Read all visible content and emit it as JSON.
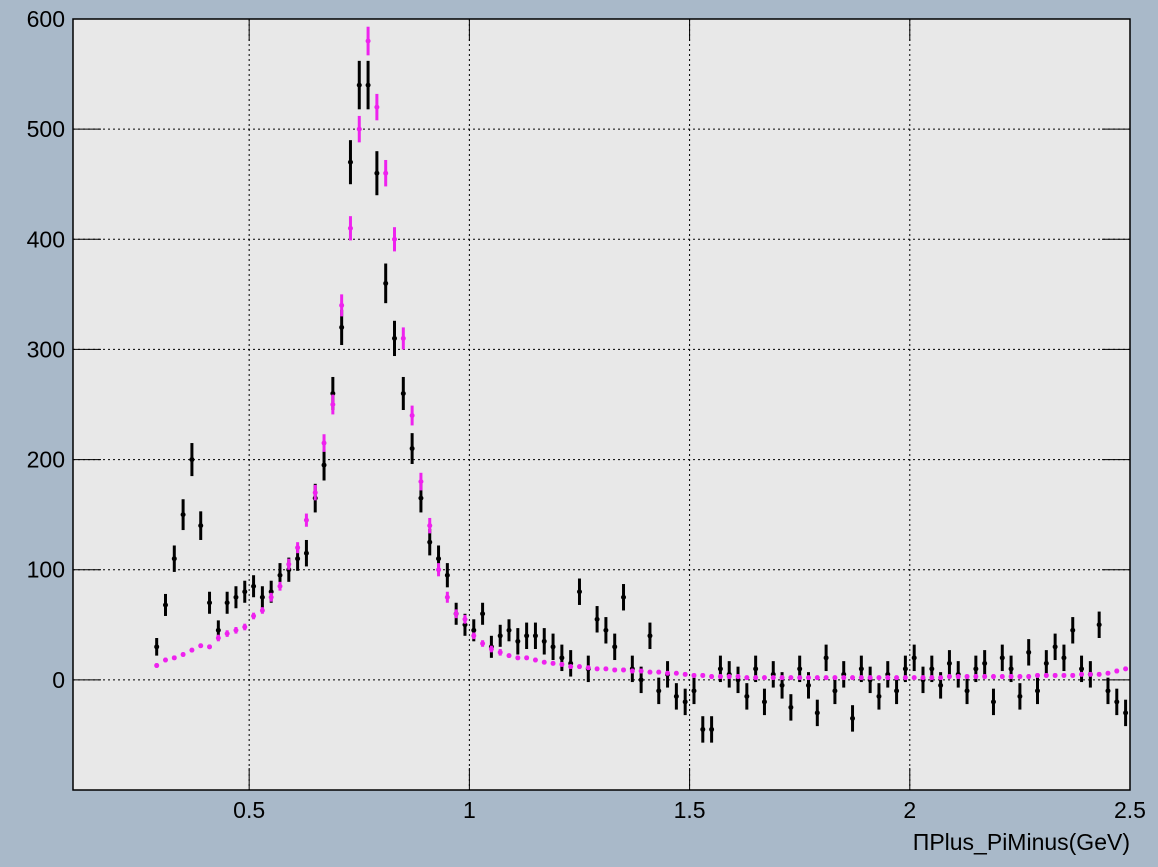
{
  "chart_data": {
    "type": "scatter",
    "x_label": "ΠPlus_PiMinus(GeV)",
    "xlim": [
      0.1,
      2.5
    ],
    "xticks": [
      0.5,
      1,
      1.5,
      2,
      2.5
    ],
    "ylim": [
      -100,
      600
    ],
    "yticks": [
      0,
      100,
      200,
      300,
      400,
      500,
      600
    ],
    "grid": true,
    "x": [
      0.29,
      0.31,
      0.33,
      0.35,
      0.37,
      0.39,
      0.41,
      0.43,
      0.45,
      0.47,
      0.49,
      0.51,
      0.53,
      0.55,
      0.57,
      0.59,
      0.61,
      0.63,
      0.65,
      0.67,
      0.69,
      0.71,
      0.73,
      0.75,
      0.77,
      0.79,
      0.81,
      0.83,
      0.85,
      0.87,
      0.89,
      0.91,
      0.93,
      0.95,
      0.97,
      0.99,
      1.01,
      1.03,
      1.05,
      1.07,
      1.09,
      1.11,
      1.13,
      1.15,
      1.17,
      1.19,
      1.21,
      1.23,
      1.25,
      1.27,
      1.29,
      1.31,
      1.33,
      1.35,
      1.37,
      1.39,
      1.41,
      1.43,
      1.45,
      1.47,
      1.49,
      1.51,
      1.53,
      1.55,
      1.57,
      1.59,
      1.61,
      1.63,
      1.65,
      1.67,
      1.69,
      1.71,
      1.73,
      1.75,
      1.77,
      1.79,
      1.81,
      1.83,
      1.85,
      1.87,
      1.89,
      1.91,
      1.93,
      1.95,
      1.97,
      1.99,
      2.01,
      2.03,
      2.05,
      2.07,
      2.09,
      2.11,
      2.13,
      2.15,
      2.17,
      2.19,
      2.21,
      2.23,
      2.25,
      2.27,
      2.29,
      2.31,
      2.33,
      2.35,
      2.37,
      2.39,
      2.41,
      2.43,
      2.45,
      2.47,
      2.49
    ],
    "series": [
      {
        "color": "#000000",
        "values": [
          30,
          68,
          110,
          150,
          200,
          140,
          70,
          45,
          70,
          75,
          80,
          85,
          75,
          80,
          95,
          100,
          110,
          115,
          165,
          195,
          260,
          320,
          470,
          540,
          540,
          460,
          360,
          310,
          260,
          210,
          165,
          125,
          110,
          95,
          60,
          50,
          45,
          60,
          30,
          40,
          45,
          35,
          40,
          40,
          35,
          30,
          20,
          15,
          80,
          10,
          55,
          45,
          30,
          75,
          10,
          0,
          40,
          -10,
          5,
          -15,
          -20,
          -10,
          -45,
          -45,
          10,
          5,
          0,
          -15,
          10,
          -20,
          5,
          -5,
          -25,
          10,
          -5,
          -30,
          20,
          -10,
          5,
          -35,
          10,
          0,
          -15,
          5,
          -10,
          10,
          20,
          0,
          10,
          -5,
          15,
          5,
          -10,
          10,
          15,
          -20,
          20,
          10,
          -15,
          25,
          -10,
          15,
          30,
          20,
          45,
          10,
          5,
          50,
          -10,
          -20,
          -30
        ],
        "errors": [
          8,
          10,
          12,
          14,
          15,
          13,
          10,
          9,
          10,
          10,
          10,
          10,
          10,
          10,
          11,
          11,
          11,
          12,
          13,
          14,
          15,
          16,
          20,
          22,
          22,
          20,
          18,
          16,
          15,
          14,
          13,
          12,
          12,
          11,
          10,
          10,
          10,
          10,
          10,
          10,
          10,
          12,
          12,
          12,
          12,
          12,
          12,
          12,
          12,
          12,
          12,
          12,
          12,
          12,
          12,
          12,
          12,
          12,
          12,
          12,
          12,
          12,
          12,
          12,
          12,
          12,
          12,
          12,
          12,
          12,
          12,
          12,
          12,
          12,
          12,
          12,
          12,
          12,
          12,
          12,
          12,
          12,
          12,
          12,
          12,
          12,
          12,
          12,
          12,
          12,
          12,
          12,
          12,
          12,
          12,
          12,
          12,
          12,
          12,
          12,
          12,
          12,
          12,
          12,
          12,
          12,
          12,
          12,
          12,
          12,
          12
        ]
      },
      {
        "color": "#ee22ee",
        "values": [
          13,
          18,
          20,
          23,
          27,
          31,
          30,
          38,
          42,
          45,
          48,
          58,
          63,
          75,
          85,
          105,
          120,
          145,
          170,
          215,
          250,
          340,
          410,
          500,
          580,
          520,
          460,
          400,
          310,
          240,
          180,
          140,
          100,
          75,
          60,
          55,
          40,
          33,
          28,
          25,
          22,
          20,
          20,
          18,
          16,
          15,
          14,
          12,
          12,
          11,
          10,
          10,
          9,
          9,
          8,
          8,
          7,
          7,
          6,
          6,
          5,
          4,
          4,
          3,
          3,
          3,
          3,
          2,
          2,
          2,
          2,
          2,
          2,
          2,
          2,
          2,
          2,
          2,
          2,
          2,
          2,
          2,
          2,
          2,
          2,
          2,
          2,
          2,
          2,
          2,
          3,
          3,
          3,
          3,
          3,
          3,
          3,
          3,
          3,
          3,
          4,
          4,
          4,
          4,
          4,
          5,
          5,
          5,
          6,
          8,
          10
        ],
        "errors": [
          2,
          2,
          2,
          2,
          2,
          2,
          2,
          3,
          3,
          3,
          3,
          3,
          3,
          4,
          4,
          5,
          5,
          6,
          7,
          8,
          9,
          10,
          11,
          12,
          13,
          12,
          12,
          11,
          10,
          9,
          8,
          7,
          6,
          5,
          4,
          4,
          3,
          3,
          3,
          3,
          2,
          2,
          2,
          2,
          2,
          2,
          2,
          2,
          2,
          2,
          2,
          2,
          2,
          2,
          2,
          2,
          2,
          2,
          2,
          2,
          2,
          2,
          2,
          2,
          2,
          2,
          2,
          2,
          2,
          2,
          2,
          2,
          2,
          2,
          2,
          2,
          2,
          2,
          2,
          2,
          2,
          2,
          2,
          2,
          2,
          2,
          2,
          2,
          2,
          2,
          2,
          2,
          2,
          2,
          2,
          2,
          2,
          2,
          2,
          2,
          2,
          2,
          2,
          2,
          2,
          2,
          2,
          2,
          2,
          2,
          2
        ]
      }
    ]
  }
}
